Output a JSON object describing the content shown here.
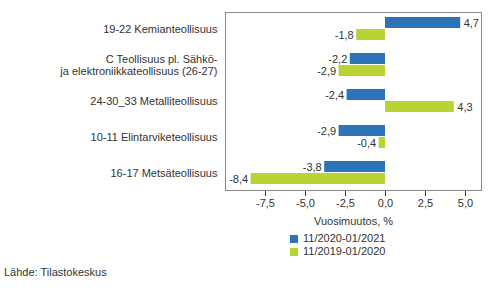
{
  "chart_data": {
    "type": "bar",
    "orientation": "horizontal",
    "x_label": "Vuosimuutos, %",
    "caption": "Lähde: Tilastokeskus",
    "categories": [
      "19-22 Kemianteollisuus",
      "C Teollisuus pl. Sähkö-\nja elektroniikkateollisuus (26-27)",
      "24-30_33 Metalliteollisuus",
      "10-11 Elintarviketeollisuus",
      "16-17 Metsäteollisuus"
    ],
    "series": [
      {
        "name": "11/2020-01/2021",
        "color": "#2c74b8",
        "values": [
          4.7,
          -2.2,
          -2.4,
          -2.9,
          -3.8
        ],
        "value_labels": [
          "4,7",
          "-2,2",
          "-2,4",
          "-2,9",
          "-3,8"
        ]
      },
      {
        "name": "11/2019-01/2020",
        "color": "#b8d433",
        "values": [
          -1.8,
          -2.9,
          4.3,
          -0.4,
          -8.4
        ],
        "value_labels": [
          "-1,8",
          "-2,9",
          "4,3",
          "-0,4",
          "-8,4"
        ]
      }
    ],
    "xlim": [
      -10,
      6
    ],
    "xticks": [
      {
        "value": -7.5,
        "label": "-7,5"
      },
      {
        "value": -5,
        "label": "-5,0"
      },
      {
        "value": -2.5,
        "label": "-2,5"
      },
      {
        "value": 0,
        "label": "0,0"
      },
      {
        "value": 2.5,
        "label": "2,5"
      },
      {
        "value": 5,
        "label": "5,0"
      }
    ],
    "data_labels": true,
    "grid": false,
    "legend": "bottom"
  }
}
